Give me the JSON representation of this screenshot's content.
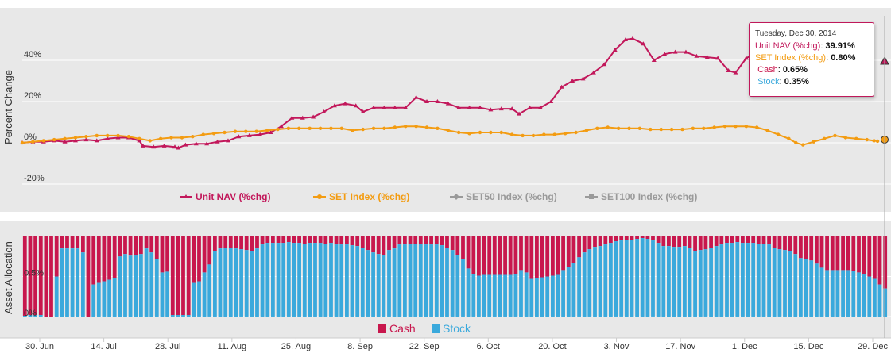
{
  "colors": {
    "unit_nav": "#c2185b",
    "set_index": "#f39c12",
    "set50": "#9a9a9a",
    "set100": "#9a9a9a",
    "cash": "#c8174d",
    "stock": "#3aa9dc",
    "panel": "#e8e8e8"
  },
  "tooltip": {
    "date": "Tuesday, Dec 30, 2014",
    "unit_nav_label": "Unit NAV (%chg)",
    "unit_nav_value": "39.91%",
    "set_label": "SET Index (%chg)",
    "set_value": "0.80%",
    "cash_label": "Cash",
    "cash_value": "0.65%",
    "stock_label": "Stock",
    "stock_value": "0.35%"
  },
  "chart_data": [
    {
      "type": "line",
      "ylabel": "Percent Change",
      "ylim": [
        -20,
        55
      ],
      "yticks": [
        "40%",
        "20%",
        "0%",
        "-20%"
      ],
      "ytick_values": [
        40,
        20,
        0,
        -20
      ],
      "xlabels": [
        "30. Jun",
        "14. Jul",
        "28. Jul",
        "11. Aug",
        "25. Aug",
        "8. Sep",
        "22. Sep",
        "6. Oct",
        "20. Oct",
        "3. Nov",
        "17. Nov",
        "1. Dec",
        "15. Dec",
        "29. Dec"
      ],
      "grid": true,
      "legend_position": "bottom",
      "series": [
        {
          "name": "Unit NAV (%chg)",
          "marker": "triangle",
          "points": [
            [
              0,
              0
            ],
            [
              3,
              0.5
            ],
            [
              6,
              0.5
            ],
            [
              9,
              1
            ],
            [
              12,
              0.5
            ],
            [
              15,
              1
            ],
            [
              18,
              1.5
            ],
            [
              21,
              1
            ],
            [
              24,
              2
            ],
            [
              27,
              2.5
            ],
            [
              30,
              2.5
            ],
            [
              33,
              1
            ],
            [
              34,
              -1.5
            ],
            [
              37,
              -2
            ],
            [
              40,
              -1.5
            ],
            [
              43,
              -2
            ],
            [
              44,
              -2.5
            ],
            [
              46,
              -1
            ],
            [
              49,
              -0.5
            ],
            [
              52,
              -0.5
            ],
            [
              55,
              0.5
            ],
            [
              58,
              1
            ],
            [
              61,
              3
            ],
            [
              64,
              3.5
            ],
            [
              67,
              4
            ],
            [
              70,
              5
            ],
            [
              73,
              8
            ],
            [
              76,
              12
            ],
            [
              79,
              12
            ],
            [
              82,
              12.5
            ],
            [
              85,
              15
            ],
            [
              88,
              18
            ],
            [
              91,
              19
            ],
            [
              94,
              18
            ],
            [
              96,
              15
            ],
            [
              99,
              17
            ],
            [
              102,
              17
            ],
            [
              105,
              17
            ],
            [
              108,
              17
            ],
            [
              111,
              22
            ],
            [
              114,
              20
            ],
            [
              117,
              20
            ],
            [
              120,
              19
            ],
            [
              123,
              17
            ],
            [
              126,
              17
            ],
            [
              129,
              17
            ],
            [
              132,
              16
            ],
            [
              135,
              16.5
            ],
            [
              138,
              16.5
            ],
            [
              140,
              14
            ],
            [
              143,
              17
            ],
            [
              146,
              17
            ],
            [
              149,
              20
            ],
            [
              152,
              27
            ],
            [
              155,
              30
            ],
            [
              158,
              31
            ],
            [
              161,
              34
            ],
            [
              164,
              38
            ],
            [
              167,
              45
            ],
            [
              170,
              50
            ],
            [
              172,
              50.5
            ],
            [
              175,
              48
            ],
            [
              178,
              40
            ],
            [
              181,
              43
            ],
            [
              184,
              44
            ],
            [
              187,
              44
            ],
            [
              190,
              42
            ],
            [
              193,
              41.5
            ],
            [
              196,
              41
            ],
            [
              199,
              35
            ],
            [
              201,
              34
            ],
            [
              204,
              41
            ],
            [
              205,
              42
            ]
          ]
        },
        {
          "name": "SET Index (%chg)",
          "marker": "circle",
          "points": [
            [
              0,
              0
            ],
            [
              3,
              0.5
            ],
            [
              6,
              1
            ],
            [
              9,
              1.5
            ],
            [
              12,
              2
            ],
            [
              15,
              2.5
            ],
            [
              18,
              3
            ],
            [
              21,
              3.5
            ],
            [
              24,
              3.5
            ],
            [
              27,
              3.5
            ],
            [
              30,
              3
            ],
            [
              33,
              2
            ],
            [
              36,
              1
            ],
            [
              39,
              2
            ],
            [
              42,
              2.5
            ],
            [
              45,
              2.5
            ],
            [
              48,
              3
            ],
            [
              51,
              4
            ],
            [
              54,
              4.5
            ],
            [
              57,
              5
            ],
            [
              60,
              5.5
            ],
            [
              63,
              5.5
            ],
            [
              66,
              5.5
            ],
            [
              69,
              6
            ],
            [
              72,
              6.5
            ],
            [
              75,
              7
            ],
            [
              78,
              7
            ],
            [
              81,
              7
            ],
            [
              84,
              7
            ],
            [
              87,
              7
            ],
            [
              90,
              7
            ],
            [
              93,
              6
            ],
            [
              96,
              6.5
            ],
            [
              99,
              7
            ],
            [
              102,
              7
            ],
            [
              105,
              7.5
            ],
            [
              108,
              8
            ],
            [
              111,
              8
            ],
            [
              114,
              7.5
            ],
            [
              117,
              7
            ],
            [
              120,
              6
            ],
            [
              123,
              5
            ],
            [
              126,
              4.5
            ],
            [
              129,
              5
            ],
            [
              132,
              5
            ],
            [
              135,
              5
            ],
            [
              138,
              4
            ],
            [
              141,
              3.5
            ],
            [
              144,
              3.5
            ],
            [
              147,
              4
            ],
            [
              150,
              4
            ],
            [
              153,
              4.5
            ],
            [
              156,
              5
            ],
            [
              159,
              6
            ],
            [
              162,
              7
            ],
            [
              165,
              7.5
            ],
            [
              168,
              7
            ],
            [
              171,
              7
            ],
            [
              174,
              7
            ],
            [
              177,
              6.5
            ],
            [
              180,
              6.5
            ],
            [
              183,
              6.5
            ],
            [
              186,
              6.5
            ],
            [
              189,
              7
            ],
            [
              192,
              7
            ],
            [
              195,
              7.5
            ],
            [
              198,
              8
            ],
            [
              201,
              8
            ],
            [
              204,
              8
            ],
            [
              207,
              7.5
            ],
            [
              210,
              6
            ],
            [
              213,
              4
            ],
            [
              216,
              2
            ],
            [
              218,
              0
            ],
            [
              220,
              -1
            ],
            [
              223,
              0.5
            ],
            [
              226,
              2
            ],
            [
              229,
              3.5
            ],
            [
              232,
              2.5
            ],
            [
              235,
              2
            ],
            [
              238,
              1.5
            ],
            [
              240,
              1
            ],
            [
              241,
              0.8
            ]
          ]
        },
        {
          "name": "SET50 Index (%chg)",
          "marker": "diamond",
          "points": []
        },
        {
          "name": "SET100 Index (%chg)",
          "marker": "square",
          "points": []
        }
      ]
    },
    {
      "type": "bar",
      "ylabel": "Asset Allocation",
      "ylim": [
        0,
        1
      ],
      "yticks": [
        "0.5%",
        "0%"
      ],
      "ytick_values": [
        0.5,
        0
      ],
      "stacked": true,
      "legend_position": "bottom",
      "series": [
        {
          "name": "Cash",
          "color_key": "cash"
        },
        {
          "name": "Stock",
          "color_key": "stock"
        }
      ],
      "stock_values": [
        0.01,
        0.02,
        0.02,
        0.02,
        0,
        0,
        0.5,
        0.85,
        0.85,
        0.85,
        0.85,
        0.8,
        0,
        0.4,
        0.42,
        0.44,
        0.46,
        0.48,
        0.75,
        0.78,
        0.76,
        0.77,
        0.78,
        0.85,
        0.8,
        0.72,
        0.55,
        0.56,
        0.02,
        0.02,
        0.02,
        0.02,
        0.42,
        0.44,
        0.55,
        0.65,
        0.82,
        0.85,
        0.86,
        0.86,
        0.85,
        0.84,
        0.83,
        0.82,
        0.85,
        0.9,
        0.92,
        0.92,
        0.92,
        0.92,
        0.93,
        0.92,
        0.92,
        0.91,
        0.92,
        0.92,
        0.92,
        0.91,
        0.92,
        0.9,
        0.9,
        0.9,
        0.89,
        0.88,
        0.86,
        0.83,
        0.8,
        0.78,
        0.77,
        0.83,
        0.85,
        0.9,
        0.9,
        0.91,
        0.91,
        0.91,
        0.9,
        0.9,
        0.9,
        0.89,
        0.86,
        0.83,
        0.77,
        0.72,
        0.6,
        0.53,
        0.51,
        0.52,
        0.52,
        0.52,
        0.52,
        0.52,
        0.52,
        0.53,
        0.58,
        0.55,
        0.47,
        0.48,
        0.49,
        0.5,
        0.51,
        0.52,
        0.58,
        0.62,
        0.67,
        0.74,
        0.8,
        0.84,
        0.87,
        0.88,
        0.9,
        0.92,
        0.94,
        0.95,
        0.96,
        0.96,
        0.97,
        0.98,
        0.97,
        0.95,
        0.92,
        0.88,
        0.88,
        0.87,
        0.87,
        0.88,
        0.86,
        0.82,
        0.83,
        0.84,
        0.86,
        0.88,
        0.9,
        0.92,
        0.92,
        0.93,
        0.92,
        0.92,
        0.92,
        0.91,
        0.91,
        0.9,
        0.86,
        0.84,
        0.83,
        0.82,
        0.78,
        0.73,
        0.72,
        0.7,
        0.66,
        0.61,
        0.58,
        0.58,
        0.58,
        0.58,
        0.58,
        0.57,
        0.55,
        0.53,
        0.5,
        0.47,
        0.4,
        0.35
      ],
      "x_cash_cat_start": 0
    }
  ],
  "legend_top": [
    {
      "label": "Unit NAV (%chg)",
      "key": "unit_nav"
    },
    {
      "label": "SET Index (%chg)",
      "key": "set_index"
    },
    {
      "label": "SET50 Index (%chg)",
      "key": "set50"
    },
    {
      "label": "SET100 Index (%chg)",
      "key": "set100"
    }
  ],
  "legend_bottom": [
    {
      "label": "Cash",
      "key": "cash"
    },
    {
      "label": "Stock",
      "key": "stock"
    }
  ]
}
